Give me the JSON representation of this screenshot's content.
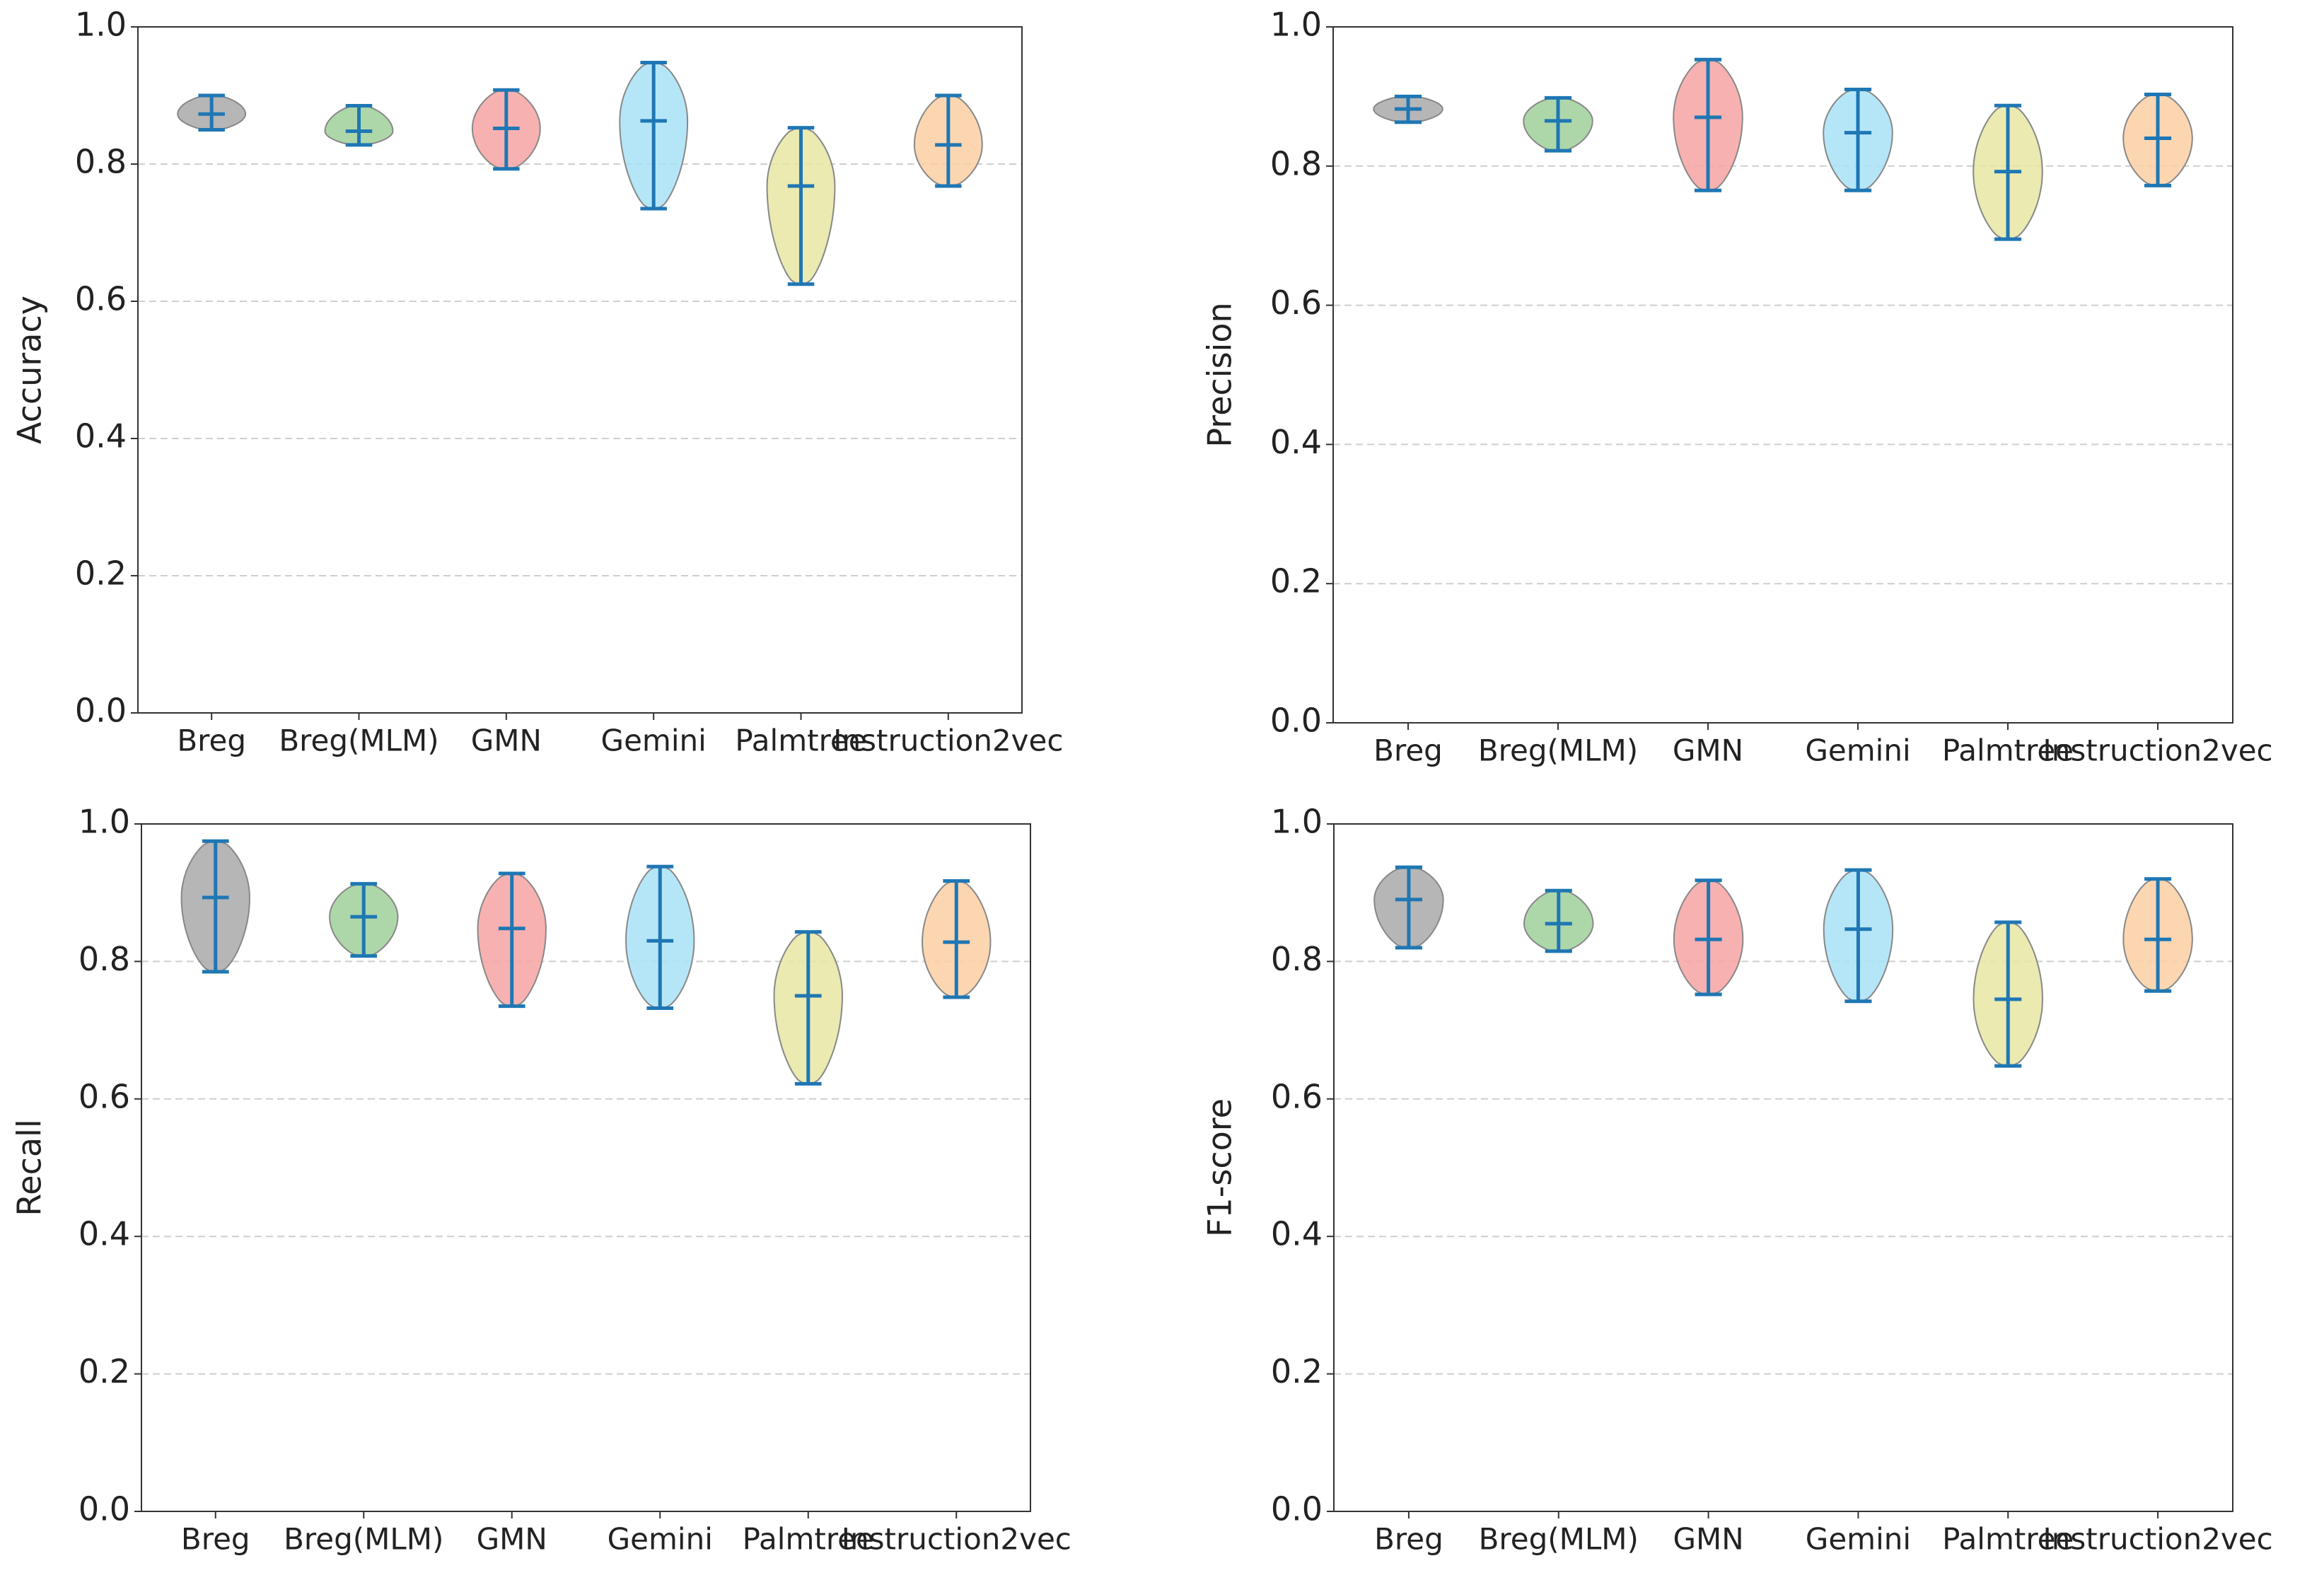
{
  "chart_data": [
    {
      "type": "violin",
      "ylabel": "Accuracy",
      "categories": [
        "Breg",
        "Breg(MLM)",
        "GMN",
        "Gemini",
        "Palmtree",
        "Instruction2vec"
      ],
      "colors": [
        "#a9a9a9",
        "#9fd09a",
        "#f7a3a3",
        "#a8e2f7",
        "#e6e6a3",
        "#fbcfa3"
      ],
      "line_color": "#1f77b4",
      "mins": [
        0.85,
        0.828,
        0.793,
        0.735,
        0.625,
        0.768
      ],
      "maxs": [
        0.9,
        0.885,
        0.908,
        0.948,
        0.853,
        0.9
      ],
      "medians": [
        0.873,
        0.848,
        0.852,
        0.863,
        0.768,
        0.828
      ],
      "ylim": [
        0,
        1
      ],
      "yticks": [
        {
          "value": 0,
          "label": "0.0"
        },
        0.2,
        0.4,
        0.6,
        0.8,
        {
          "value": 1,
          "label": "1.0"
        }
      ],
      "grid": true
    },
    {
      "type": "violin",
      "ylabel": "Precision",
      "categories": [
        "Breg",
        "Breg(MLM)",
        "GMN",
        "Gemini",
        "Palmtree",
        "Instruction2vec"
      ],
      "colors": [
        "#a9a9a9",
        "#9fd09a",
        "#f7a3a3",
        "#a8e2f7",
        "#e6e6a3",
        "#fbcfa3"
      ],
      "line_color": "#1f77b4",
      "mins": [
        0.863,
        0.822,
        0.765,
        0.765,
        0.695,
        0.772
      ],
      "maxs": [
        0.9,
        0.898,
        0.953,
        0.91,
        0.887,
        0.903
      ],
      "medians": [
        0.882,
        0.865,
        0.87,
        0.848,
        0.792,
        0.84
      ],
      "ylim": [
        0,
        1
      ],
      "yticks": [
        {
          "value": 0,
          "label": "0.0"
        },
        0.2,
        0.4,
        0.6,
        0.8,
        {
          "value": 1,
          "label": "1.0"
        }
      ],
      "grid": true
    },
    {
      "type": "violin",
      "ylabel": "Recall",
      "categories": [
        "Breg",
        "Breg(MLM)",
        "GMN",
        "Gemini",
        "Palmtree",
        "Instruction2vec"
      ],
      "colors": [
        "#a9a9a9",
        "#9fd09a",
        "#f7a3a3",
        "#a8e2f7",
        "#e6e6a3",
        "#fbcfa3"
      ],
      "line_color": "#1f77b4",
      "mins": [
        0.785,
        0.808,
        0.735,
        0.732,
        0.622,
        0.748
      ],
      "maxs": [
        0.975,
        0.913,
        0.928,
        0.938,
        0.843,
        0.917
      ],
      "medians": [
        0.893,
        0.865,
        0.848,
        0.83,
        0.75,
        0.828
      ],
      "ylim": [
        0,
        1
      ],
      "yticks": [
        {
          "value": 0,
          "label": "0.0"
        },
        0.2,
        0.4,
        0.6,
        0.8,
        {
          "value": 1,
          "label": "1.0"
        }
      ],
      "grid": true
    },
    {
      "type": "violin",
      "ylabel": "F1-score",
      "categories": [
        "Breg",
        "Breg(MLM)",
        "GMN",
        "Gemini",
        "Palmtree",
        "Instruction2vec"
      ],
      "colors": [
        "#a9a9a9",
        "#9fd09a",
        "#f7a3a3",
        "#a8e2f7",
        "#e6e6a3",
        "#fbcfa3"
      ],
      "line_color": "#1f77b4",
      "mins": [
        0.82,
        0.815,
        0.752,
        0.742,
        0.648,
        0.757
      ],
      "maxs": [
        0.937,
        0.903,
        0.918,
        0.933,
        0.857,
        0.92
      ],
      "medians": [
        0.89,
        0.855,
        0.832,
        0.847,
        0.745,
        0.832
      ],
      "ylim": [
        0,
        1
      ],
      "yticks": [
        {
          "value": 0,
          "label": "0.0"
        },
        0.2,
        0.4,
        0.6,
        0.8,
        {
          "value": 1,
          "label": "1.0"
        }
      ],
      "grid": true
    }
  ]
}
